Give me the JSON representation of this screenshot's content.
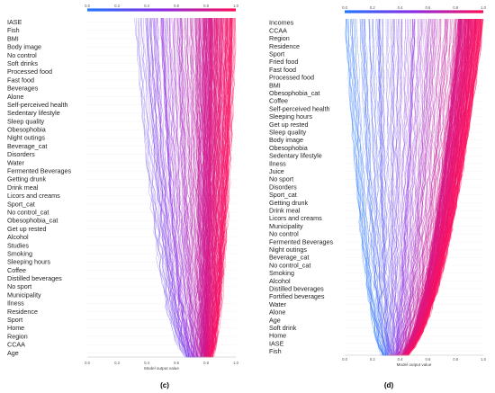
{
  "colors": {
    "low": "#1f77ff",
    "mid": "#8a2be2",
    "high": "#ff0d57"
  },
  "chart_data": [
    {
      "type": "line",
      "subtype": "shap-decision-plot",
      "panel_label": "(c)",
      "xlabel": "Model output value",
      "xlim": [
        0.0,
        1.0
      ],
      "xticks": [
        "0.0",
        "0.2",
        "0.4",
        "0.6",
        "0.8",
        "1.0"
      ],
      "color_bar_ticks": [
        "0.0",
        "0.2",
        "0.4",
        "0.6",
        "0.8",
        "1.0"
      ],
      "grid": true,
      "base_value": 0.78,
      "features": [
        "IASE",
        "Fish",
        "BMI",
        "Body image",
        "No control",
        "Soft drinks",
        "Processed food",
        "Fast food",
        "Beverages",
        "Alone",
        "Self-perceived health",
        "Sedentary lifestyle",
        "Sleep quality",
        "Obesophobia",
        "Night outings",
        "Beverage_cat",
        "Disorders",
        "Water",
        "Fermented Beverages",
        "Getting drunk",
        "Drink meal",
        "Licors and creams",
        "Sport_cat",
        "No control_cat",
        "Obesophobia_cat",
        "Get up rested",
        "Alcohol",
        "Studies",
        "Smoking",
        "Sleeping hours",
        "Coffee",
        "Distilled beverages",
        "No sport",
        "Municipality",
        "Ilness",
        "Residence",
        "Sport",
        "Home",
        "Region",
        "CCAA",
        "Age"
      ],
      "final_outputs_range": [
        0.3,
        1.0
      ]
    },
    {
      "type": "line",
      "subtype": "shap-decision-plot",
      "panel_label": "(d)",
      "xlabel": "Model output value",
      "xlim": [
        0.0,
        1.0
      ],
      "xticks": [
        "0.0",
        "0.2",
        "0.4",
        "0.6",
        "0.8",
        "1.0"
      ],
      "color_bar_ticks": [
        "0.0",
        "0.2",
        "0.4",
        "0.6",
        "0.8",
        "1.0"
      ],
      "grid": true,
      "base_value": 0.33,
      "features": [
        "Incomes",
        "CCAA",
        "Region",
        "Residence",
        "Sport",
        "Fried food",
        "Fast food",
        "Processed food",
        "BMI",
        "Obesophobia_cat",
        "Coffee",
        "Self-perceived health",
        "Sleeping hours",
        "Get up rested",
        "Sleep quality",
        "Body image",
        "Obesophobia",
        "Sedentary lifestyle",
        "Ilness",
        "Juice",
        "No sport",
        "Disorders",
        "Sport_cat",
        "Getting drunk",
        "Drink meal",
        "Licors and creams",
        "Municipality",
        "No control",
        "Fermented Beverages",
        "Night outings",
        "Beverage_cat",
        "No control_cat",
        "Smoking",
        "Alcohol",
        "Distilled beverages",
        "Fortified beverages",
        "Water",
        "Alone",
        "Age",
        "Soft drink",
        "Home",
        "IASE",
        "Fish"
      ],
      "final_outputs_range": [
        0.0,
        1.0
      ]
    }
  ]
}
